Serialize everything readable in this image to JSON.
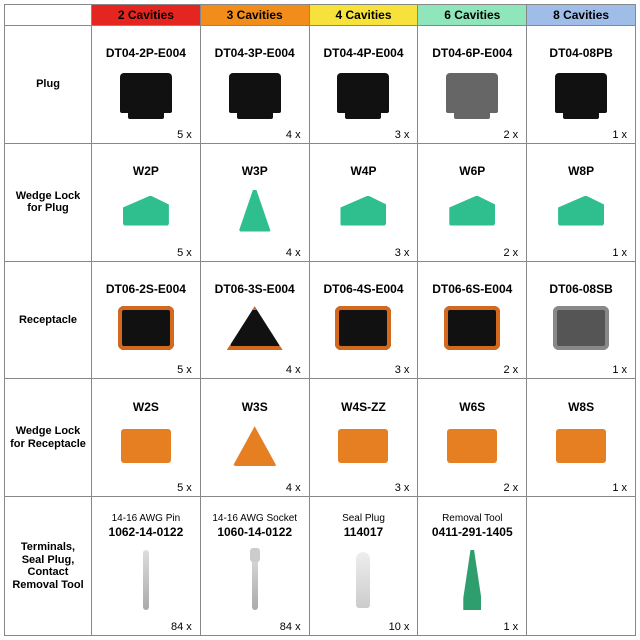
{
  "columns": [
    {
      "label": "2 Cavities",
      "bg": "#e52620",
      "fg": "#000000"
    },
    {
      "label": "3 Cavities",
      "bg": "#f28c1b",
      "fg": "#000000"
    },
    {
      "label": "4 Cavities",
      "bg": "#f7e23b",
      "fg": "#000000"
    },
    {
      "label": "6 Cavities",
      "bg": "#8fe6bb",
      "fg": "#000000"
    },
    {
      "label": "8 Cavities",
      "bg": "#9fbde8",
      "fg": "#000000"
    }
  ],
  "rows": [
    {
      "label": "Plug",
      "kind": "plug",
      "cells": [
        {
          "part": "DT04-2P-E004",
          "qty": "5 x",
          "variant": ""
        },
        {
          "part": "DT04-3P-E004",
          "qty": "4 x",
          "variant": ""
        },
        {
          "part": "DT04-4P-E004",
          "qty": "3 x",
          "variant": ""
        },
        {
          "part": "DT04-6P-E004",
          "qty": "2 x",
          "variant": "gray"
        },
        {
          "part": "DT04-08PB",
          "qty": "1 x",
          "variant": ""
        }
      ]
    },
    {
      "label": "Wedge Lock for Plug",
      "kind": "wedge-p",
      "cells": [
        {
          "part": "W2P",
          "qty": "5 x",
          "variant": ""
        },
        {
          "part": "W3P",
          "qty": "4 x",
          "variant": "cone"
        },
        {
          "part": "W4P",
          "qty": "3 x",
          "variant": ""
        },
        {
          "part": "W6P",
          "qty": "2 x",
          "variant": ""
        },
        {
          "part": "W8P",
          "qty": "1 x",
          "variant": ""
        }
      ]
    },
    {
      "label": "Receptacle",
      "kind": "recep",
      "cells": [
        {
          "part": "DT06-2S-E004",
          "qty": "5 x",
          "variant": ""
        },
        {
          "part": "DT06-3S-E004",
          "qty": "4 x",
          "variant": "tri"
        },
        {
          "part": "DT06-4S-E004",
          "qty": "3 x",
          "variant": ""
        },
        {
          "part": "DT06-6S-E004",
          "qty": "2 x",
          "variant": ""
        },
        {
          "part": "DT06-08SB",
          "qty": "1 x",
          "variant": "gray"
        }
      ]
    },
    {
      "label": "Wedge Lock for Receptacle",
      "kind": "wedge-r",
      "cells": [
        {
          "part": "W2S",
          "qty": "5 x",
          "variant": ""
        },
        {
          "part": "W3S",
          "qty": "4 x",
          "variant": "tri"
        },
        {
          "part": "W4S-ZZ",
          "qty": "3 x",
          "variant": ""
        },
        {
          "part": "W6S",
          "qty": "2 x",
          "variant": ""
        },
        {
          "part": "W8S",
          "qty": "1 x",
          "variant": ""
        }
      ]
    }
  ],
  "terminals": {
    "label": "Terminals, Seal Plug, Contact Removal Tool",
    "cells": [
      {
        "sub": "14-16 AWG Pin",
        "part": "1062-14-0122",
        "qty": "84 x",
        "icon": "pin"
      },
      {
        "sub": "14-16 AWG Socket",
        "part": "1060-14-0122",
        "qty": "84 x",
        "icon": "pin socket"
      },
      {
        "sub": "Seal Plug",
        "part": "114017",
        "qty": "10 x",
        "icon": "sealplug"
      },
      {
        "sub": "Removal Tool",
        "part": "0411-291-1405",
        "qty": "1 x",
        "icon": "tool"
      }
    ]
  }
}
